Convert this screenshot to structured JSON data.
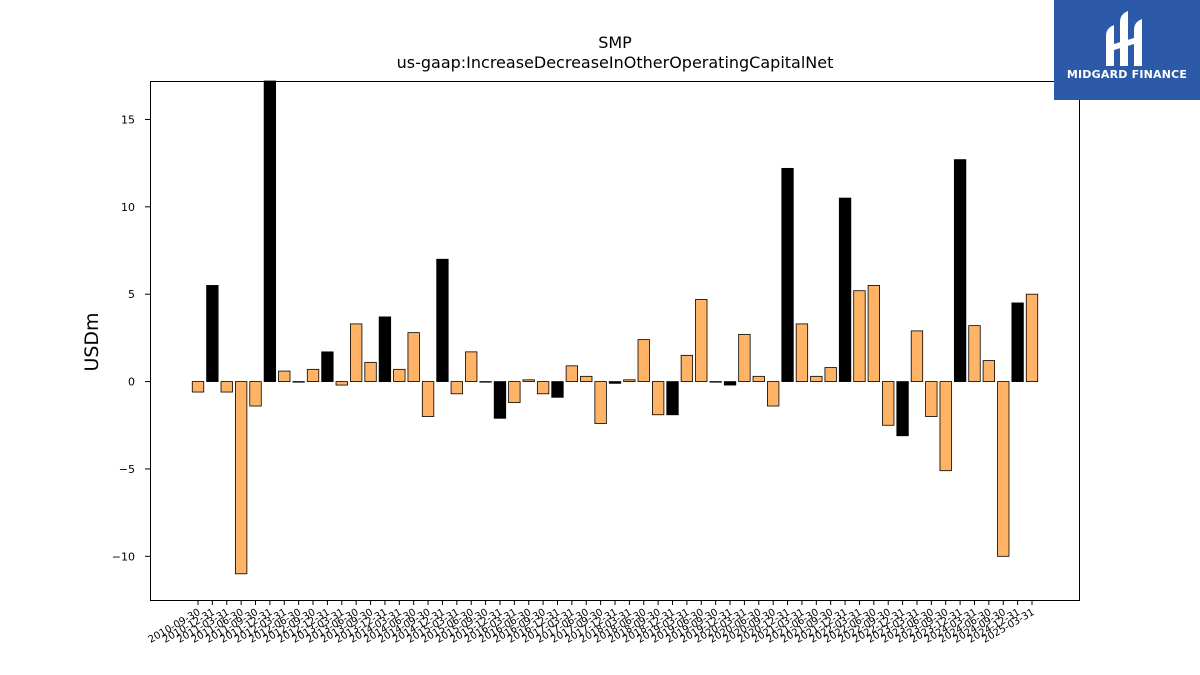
{
  "logo": {
    "text": "MIDGARD FINANCE"
  },
  "chart_data": {
    "type": "bar",
    "title": "SMP",
    "subtitle": "us-gaap:IncreaseDecreaseInOtherOperatingCapitalNet",
    "xlabel": "",
    "ylabel": "USDm",
    "ylim": [
      -12.5,
      17.2
    ],
    "yticks": [
      -10,
      -5,
      0,
      5,
      10,
      15
    ],
    "ytick_labels": [
      "−10",
      "−5",
      "0",
      "5",
      "10",
      "15"
    ],
    "colors": {
      "orange": "#ffb366",
      "black": "#000000"
    },
    "categories": [
      "2010-09-30",
      "2010-12-31",
      "2011-03-31",
      "2011-06-30",
      "2011-09-30",
      "2011-12-31",
      "2012-03-31",
      "2012-06-30",
      "2012-09-30",
      "2012-12-31",
      "2013-03-31",
      "2013-06-30",
      "2013-09-30",
      "2013-12-31",
      "2014-03-31",
      "2014-06-30",
      "2014-09-30",
      "2014-12-31",
      "2015-03-31",
      "2015-06-30",
      "2015-09-30",
      "2015-12-31",
      "2016-03-31",
      "2016-06-30",
      "2016-09-30",
      "2016-12-31",
      "2017-03-31",
      "2017-06-30",
      "2017-09-30",
      "2017-12-31",
      "2018-03-31",
      "2018-06-30",
      "2018-09-30",
      "2018-12-31",
      "2019-03-31",
      "2019-06-30",
      "2019-09-30",
      "2019-12-31",
      "2020-03-31",
      "2020-06-30",
      "2020-09-30",
      "2020-12-31",
      "2021-03-31",
      "2021-06-30",
      "2021-09-30",
      "2021-12-31",
      "2022-03-31",
      "2022-06-30",
      "2022-09-30",
      "2022-12-31",
      "2023-03-31",
      "2023-06-30",
      "2023-09-30",
      "2023-12-31",
      "2024-03-31",
      "2024-06-30",
      "2024-09-30",
      "2024-12-31",
      "2025-03-31"
    ],
    "values": [
      -0.6,
      5.5,
      -0.6,
      -11.0,
      -1.4,
      17.2,
      0.6,
      0.0,
      0.7,
      1.7,
      -0.2,
      3.3,
      1.1,
      3.7,
      0.7,
      2.8,
      -2.0,
      7.0,
      -0.7,
      1.7,
      0.0,
      -2.1,
      -1.2,
      0.1,
      -0.7,
      -0.9,
      0.9,
      0.3,
      -2.4,
      -0.1,
      0.1,
      2.4,
      -1.9,
      -1.9,
      1.5,
      4.7,
      0.0,
      -0.2,
      2.7,
      0.3,
      -1.4,
      12.2,
      3.3,
      0.3,
      0.8,
      10.5,
      5.2,
      5.5,
      -2.5,
      -3.1,
      2.9,
      -2.0,
      -5.1,
      12.7,
      3.2,
      1.2,
      -10.0,
      4.5,
      5.0
    ],
    "bar_colors": [
      "orange",
      "black",
      "orange",
      "orange",
      "orange",
      "black",
      "orange",
      "orange",
      "orange",
      "black",
      "orange",
      "orange",
      "orange",
      "black",
      "orange",
      "orange",
      "orange",
      "black",
      "orange",
      "orange",
      "orange",
      "black",
      "orange",
      "orange",
      "orange",
      "black",
      "orange",
      "orange",
      "orange",
      "black",
      "orange",
      "orange",
      "orange",
      "black",
      "orange",
      "orange",
      "orange",
      "black",
      "orange",
      "orange",
      "orange",
      "black",
      "orange",
      "orange",
      "orange",
      "black",
      "orange",
      "orange",
      "orange",
      "black",
      "orange",
      "orange",
      "orange",
      "black",
      "orange",
      "orange",
      "orange",
      "black",
      "orange"
    ]
  }
}
